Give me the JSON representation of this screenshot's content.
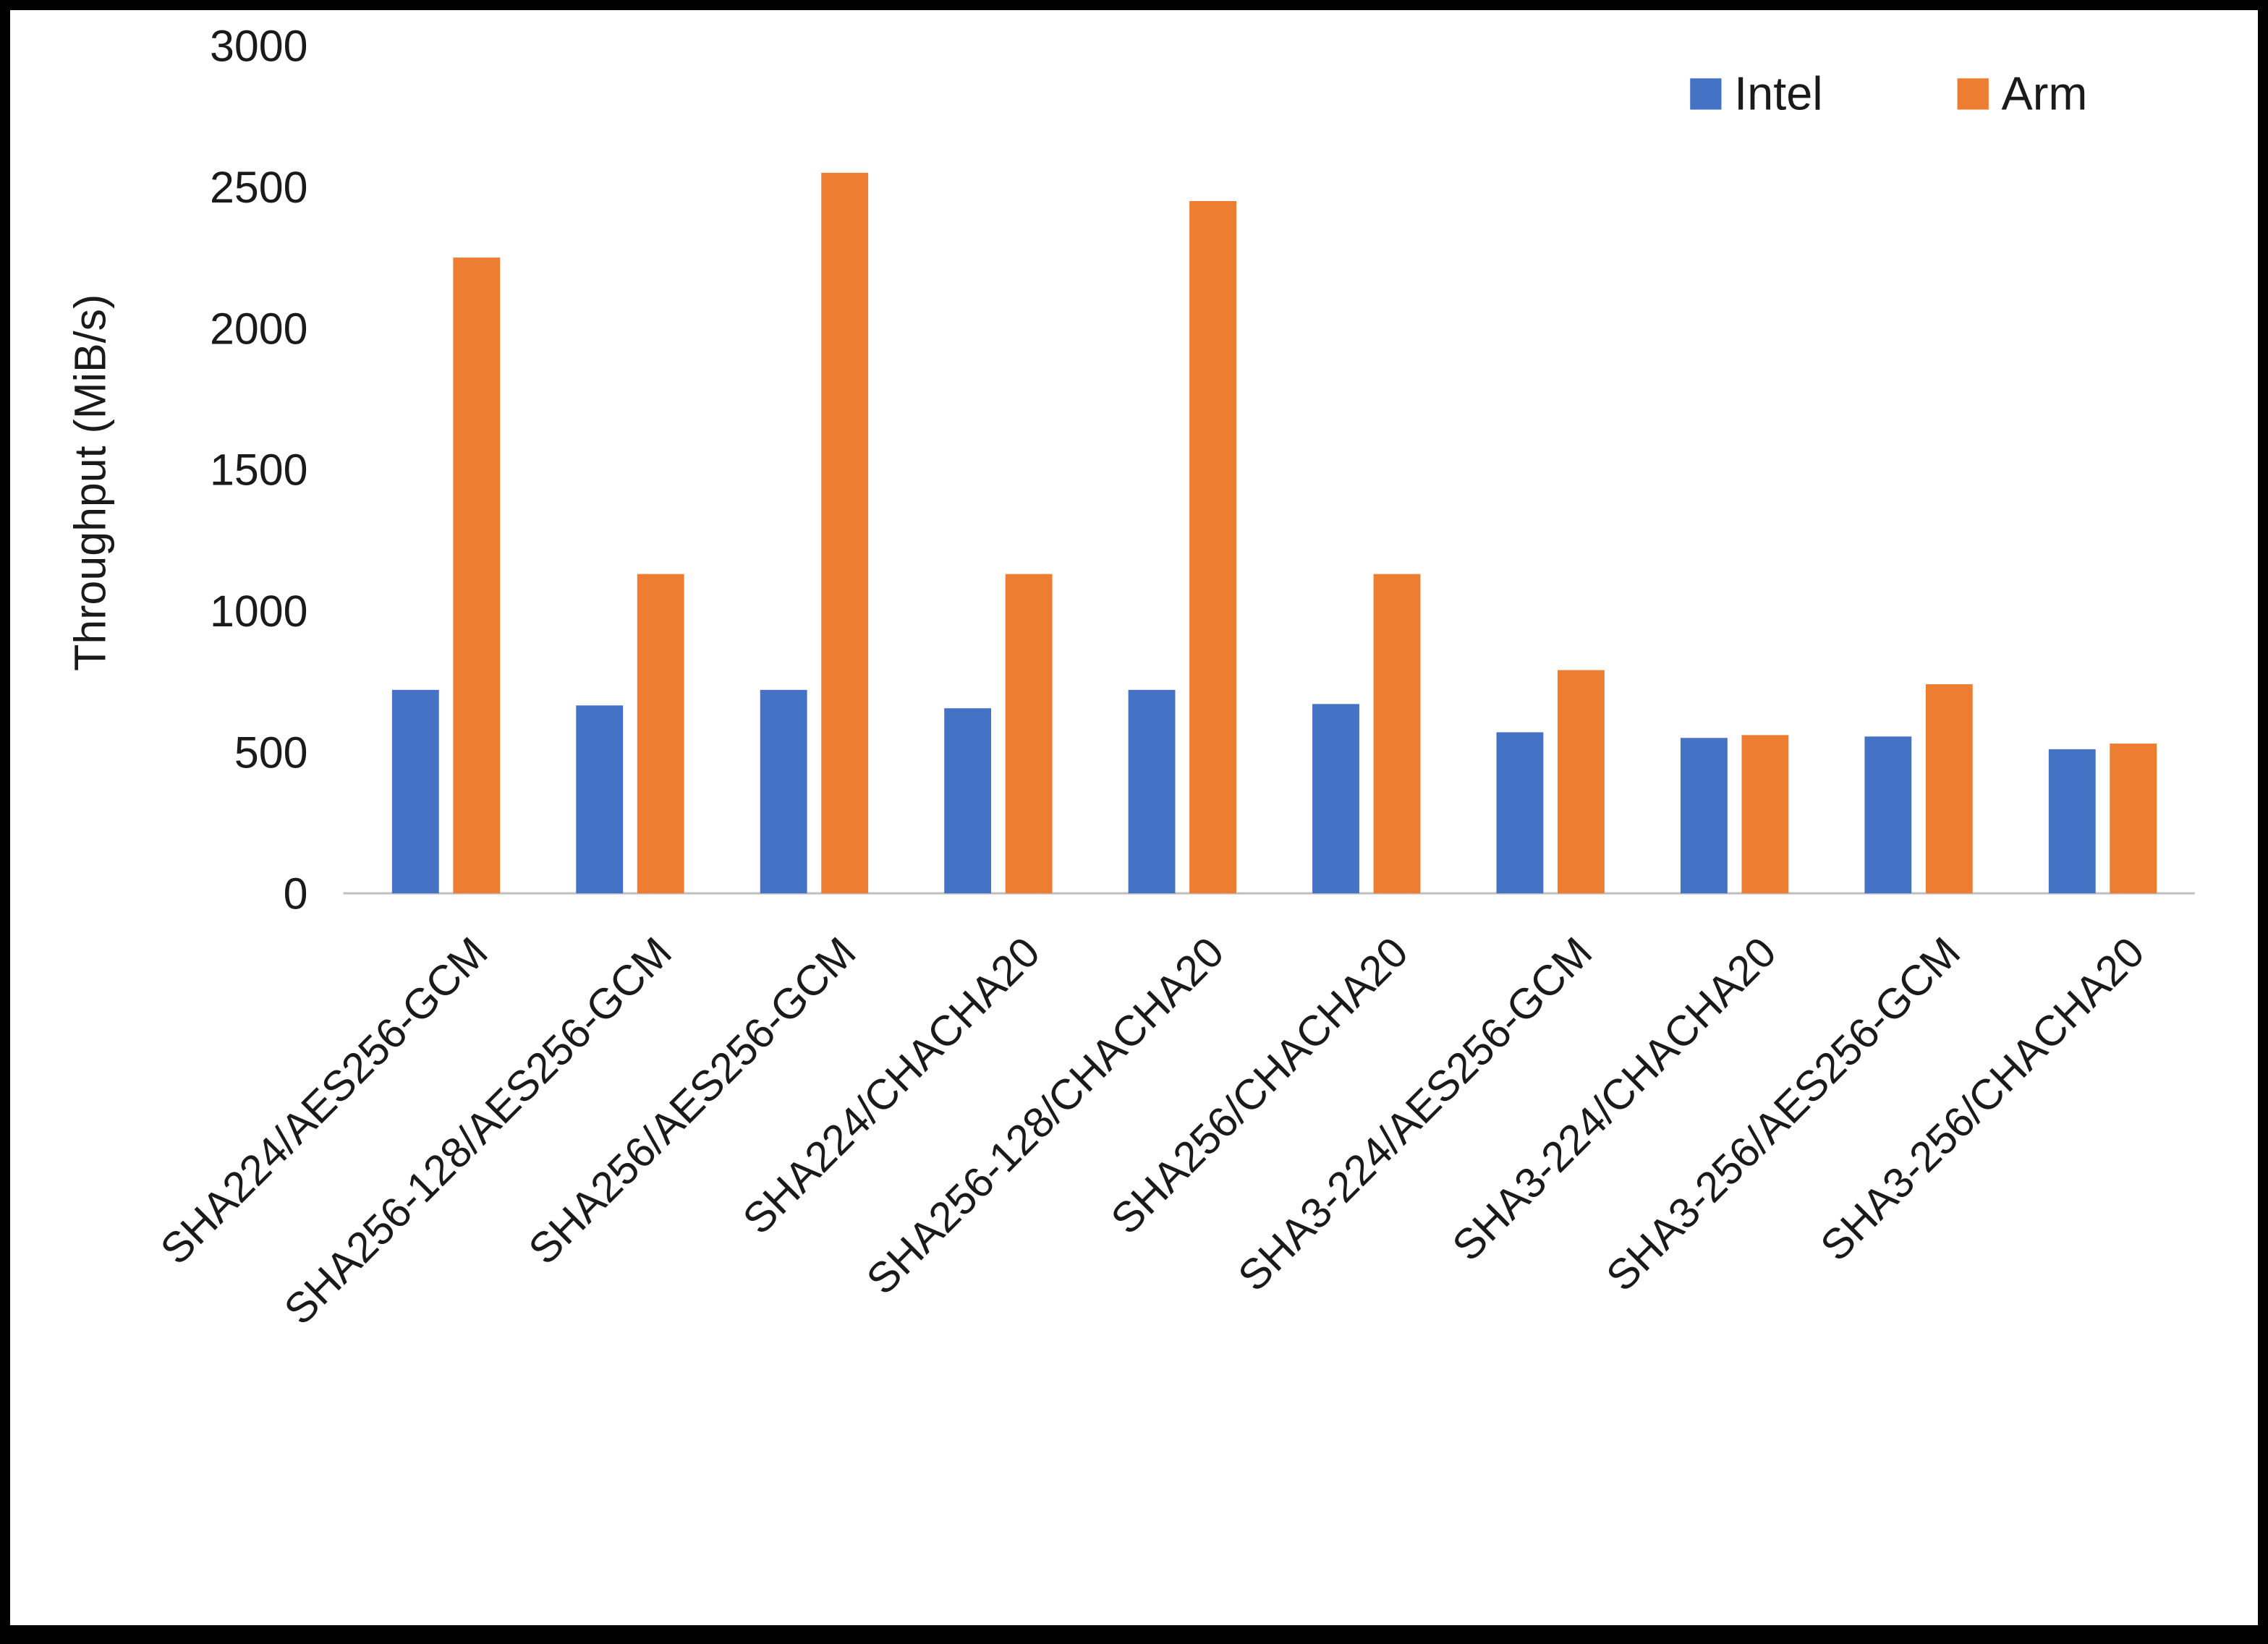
{
  "chart_data": {
    "type": "bar",
    "title": "",
    "xlabel": "",
    "ylabel": "Throughput (MiB/s)",
    "ylim": [
      0,
      3000
    ],
    "ytick_step": 500,
    "grid": false,
    "legend_position": "top-right",
    "categories": [
      "SHA224/AES256-GCM",
      "SHA256-128/AES256-GCM",
      "SHA256/AES256-GCM",
      "SHA224/CHACHA20",
      "SHA256-128/CHACHA20",
      "SHA256/CHACHA20",
      "SHA3-224/AES256-GCM",
      "SHA3-224/CHACHA20",
      "SHA3-256/AES256-GCM",
      "SHA3-256/CHACHA20"
    ],
    "series": [
      {
        "name": "Intel",
        "color": "#4472C4",
        "values": [
          720,
          665,
          720,
          655,
          720,
          670,
          570,
          550,
          555,
          510
        ]
      },
      {
        "name": "Arm",
        "color": "#ED7D31",
        "values": [
          2250,
          1130,
          2550,
          1130,
          2450,
          1130,
          790,
          560,
          740,
          530
        ]
      }
    ]
  }
}
